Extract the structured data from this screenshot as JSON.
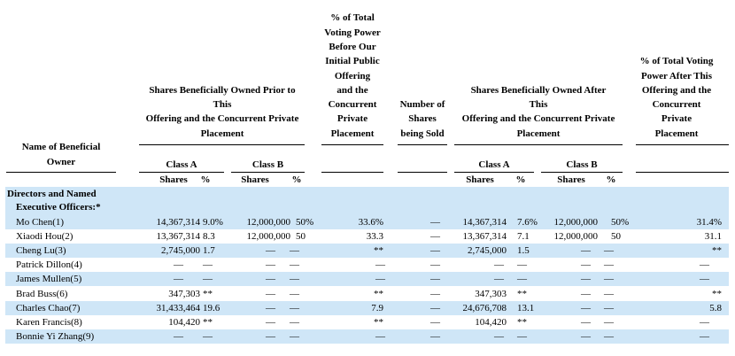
{
  "headers": {
    "name_col": [
      "Name of Beneficial",
      "Owner"
    ],
    "prior_group": [
      "Shares Beneficially Owned Prior to",
      "This",
      "Offering and the Concurrent Private",
      "Placement"
    ],
    "vote_before": [
      "% of Total",
      "Voting Power",
      "Before Our",
      "Initial Public",
      "Offering",
      "and the",
      "Concurrent",
      "Private",
      "Placement"
    ],
    "sold": [
      "Number of",
      "Shares",
      "being Sold"
    ],
    "after_group": [
      "Shares Beneficially Owned After",
      "This",
      "Offering and the Concurrent Private",
      "Placement"
    ],
    "vote_after": [
      "% of Total Voting",
      "Power After This",
      "Offering and the",
      "Concurrent",
      "Private",
      "Placement"
    ],
    "class_a": "Class A",
    "class_b": "Class B",
    "shares": "Shares",
    "pct": "%"
  },
  "section_label": [
    "Directors and Named",
    "Executive Officers:*"
  ],
  "rows": [
    {
      "name": "Mo Chen(1)",
      "a_sh": "14,367,314",
      "a_pct": "9.0%",
      "b_sh": "12,000,000",
      "b_pct": "50%",
      "vb": "33.6%",
      "sold": "—",
      "aa_sh": "14,367,314",
      "aa_pct": "7.6%",
      "ab_sh": "12,000,000",
      "ab_pct": "50%",
      "va": "31.4%"
    },
    {
      "name": "Xiaodi Hou(2)",
      "a_sh": "13,367,314",
      "a_pct": "8.3",
      "b_sh": "12,000,000",
      "b_pct": "50",
      "vb": "33.3",
      "sold": "—",
      "aa_sh": "13,367,314",
      "aa_pct": "7.1",
      "ab_sh": "12,000,000",
      "ab_pct": "50",
      "va": "31.1"
    },
    {
      "name": "Cheng Lu(3)",
      "a_sh": "2,745,000",
      "a_pct": "1.7",
      "b_sh": "—",
      "b_pct": "—",
      "vb": "**",
      "sold": "—",
      "aa_sh": "2,745,000",
      "aa_pct": "1.5",
      "ab_sh": "—",
      "ab_pct": "—",
      "va": "**"
    },
    {
      "name": "Patrick Dillon(4)",
      "a_sh": "—",
      "a_pct": "—",
      "b_sh": "—",
      "b_pct": "—",
      "vb": "—",
      "sold": "—",
      "aa_sh": "—",
      "aa_pct": "—",
      "ab_sh": "—",
      "ab_pct": "—",
      "va": "—"
    },
    {
      "name": "James Mullen(5)",
      "a_sh": "—",
      "a_pct": "—",
      "b_sh": "—",
      "b_pct": "—",
      "vb": "—",
      "sold": "—",
      "aa_sh": "—",
      "aa_pct": "—",
      "ab_sh": "—",
      "ab_pct": "—",
      "va": "—"
    },
    {
      "name": "Brad Buss(6)",
      "a_sh": "347,303",
      "a_pct": "**",
      "b_sh": "—",
      "b_pct": "—",
      "vb": "**",
      "sold": "—",
      "aa_sh": "347,303",
      "aa_pct": "**",
      "ab_sh": "—",
      "ab_pct": "—",
      "va": "**"
    },
    {
      "name": "Charles Chao(7)",
      "a_sh": "31,433,464",
      "a_pct": "19.6",
      "b_sh": "—",
      "b_pct": "—",
      "vb": "7.9",
      "sold": "—",
      "aa_sh": "24,676,708",
      "aa_pct": "13.1",
      "ab_sh": "—",
      "ab_pct": "—",
      "va": "5.8"
    },
    {
      "name": "Karen Francis(8)",
      "a_sh": "104,420",
      "a_pct": "**",
      "b_sh": "—",
      "b_pct": "—",
      "vb": "**",
      "sold": "—",
      "aa_sh": "104,420",
      "aa_pct": "**",
      "ab_sh": "—",
      "ab_pct": "—",
      "va": "—"
    },
    {
      "name": "Bonnie Yi Zhang(9)",
      "a_sh": "—",
      "a_pct": "—",
      "b_sh": "—",
      "b_pct": "—",
      "vb": "—",
      "sold": "—",
      "aa_sh": "—",
      "aa_pct": "—",
      "ab_sh": "—",
      "ab_pct": "—",
      "va": "—"
    }
  ]
}
